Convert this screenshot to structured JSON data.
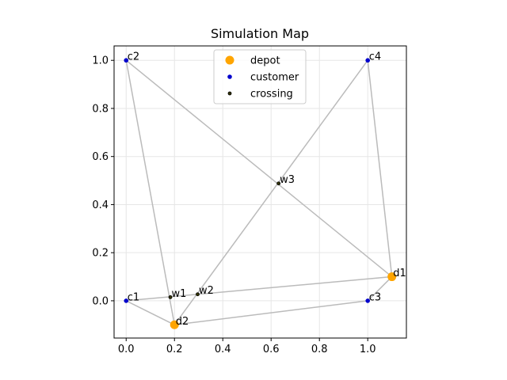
{
  "chart_data": {
    "type": "scatter",
    "title": "Simulation Map",
    "xlabel": "",
    "ylabel": "",
    "xlim": [
      -0.05,
      1.16
    ],
    "ylim": [
      -0.155,
      1.06
    ],
    "xticks": [
      0.0,
      0.2,
      0.4,
      0.6,
      0.8,
      1.0
    ],
    "yticks": [
      0.0,
      0.2,
      0.4,
      0.6,
      0.8,
      1.0
    ],
    "xtick_labels": [
      "0.0",
      "0.2",
      "0.4",
      "0.6",
      "0.8",
      "1.0"
    ],
    "ytick_labels": [
      "0.0",
      "0.2",
      "0.4",
      "0.6",
      "0.8",
      "1.0"
    ],
    "grid": true,
    "legend_position": "top-center",
    "series": [
      {
        "name": "depot",
        "color": "#FFA500",
        "marker": "large-circle",
        "points": [
          {
            "label": "d1",
            "x": 1.1,
            "y": 0.1
          },
          {
            "label": "d2",
            "x": 0.2,
            "y": -0.1
          }
        ]
      },
      {
        "name": "customer",
        "color": "#0000CC",
        "marker": "small-circle",
        "points": [
          {
            "label": "c1",
            "x": 0.0,
            "y": 0.0
          },
          {
            "label": "c2",
            "x": 0.0,
            "y": 1.0
          },
          {
            "label": "c3",
            "x": 1.0,
            "y": 0.0
          },
          {
            "label": "c4",
            "x": 1.0,
            "y": 1.0
          }
        ]
      },
      {
        "name": "crossing",
        "color": "#333300",
        "marker": "tiny-circle",
        "points": [
          {
            "label": "w1",
            "x": 0.183,
            "y": 0.015
          },
          {
            "label": "w2",
            "x": 0.296,
            "y": 0.027
          },
          {
            "label": "w3",
            "x": 0.631,
            "y": 0.488
          }
        ]
      }
    ],
    "edges": [
      [
        "c1",
        "d2"
      ],
      [
        "c2",
        "d2"
      ],
      [
        "c2",
        "d1"
      ],
      [
        "c3",
        "d2"
      ],
      [
        "c3",
        "d1"
      ],
      [
        "c4",
        "d1"
      ],
      [
        "c4",
        "d2"
      ],
      [
        "c1",
        "d1"
      ]
    ],
    "edge_color": "#BBBBBB",
    "grid_color": "#E6E6E6"
  }
}
